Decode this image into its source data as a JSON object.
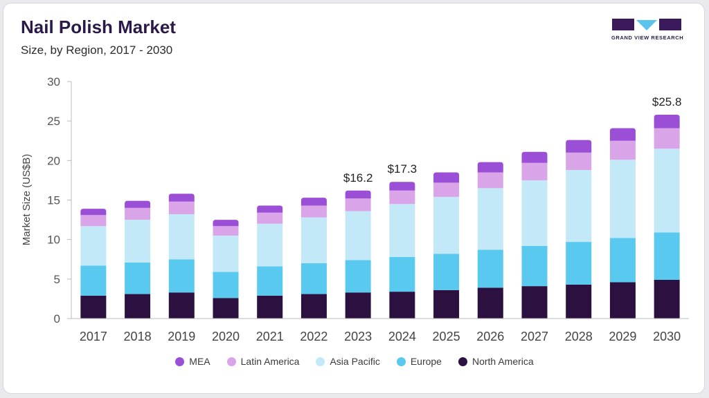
{
  "header": {
    "title": "Nail Polish Market",
    "subtitle": "Size, by Region, 2017 - 2030"
  },
  "logo": {
    "text": "GRAND VIEW RESEARCH",
    "colors": {
      "dark": "#3b1a5c",
      "accent": "#5bc4ec"
    }
  },
  "colors": {
    "MEA": "#9b4fd6",
    "Latin America": "#d9a5e8",
    "Asia Pacific": "#c3e9f8",
    "Europe": "#5ac9f0",
    "North America": "#2b1040"
  },
  "chart_data": {
    "type": "bar",
    "stacked": true,
    "title": "Nail Polish Market",
    "subtitle": "Size, by Region, 2017 - 2030",
    "xlabel": "",
    "ylabel": "Market Size (US$B)",
    "ylim": [
      0,
      30
    ],
    "yticks": [
      0,
      5,
      10,
      15,
      20,
      25,
      30
    ],
    "grid": false,
    "legend_position": "bottom",
    "categories": [
      "2017",
      "2018",
      "2019",
      "2020",
      "2021",
      "2022",
      "2023",
      "2024",
      "2025",
      "2026",
      "2027",
      "2028",
      "2029",
      "2030"
    ],
    "series": [
      {
        "name": "North America",
        "values": [
          2.9,
          3.1,
          3.3,
          2.6,
          2.9,
          3.1,
          3.3,
          3.4,
          3.6,
          3.9,
          4.1,
          4.3,
          4.6,
          4.9
        ]
      },
      {
        "name": "Europe",
        "values": [
          3.8,
          4.0,
          4.2,
          3.3,
          3.7,
          3.9,
          4.1,
          4.4,
          4.6,
          4.8,
          5.1,
          5.4,
          5.6,
          6.0
        ]
      },
      {
        "name": "Asia Pacific",
        "values": [
          5.0,
          5.4,
          5.7,
          4.6,
          5.4,
          5.8,
          6.2,
          6.7,
          7.2,
          7.8,
          8.3,
          9.1,
          9.9,
          10.6
        ]
      },
      {
        "name": "Latin America",
        "values": [
          1.4,
          1.5,
          1.6,
          1.2,
          1.4,
          1.5,
          1.6,
          1.7,
          1.8,
          2.0,
          2.2,
          2.2,
          2.4,
          2.6
        ]
      },
      {
        "name": "MEA",
        "values": [
          0.8,
          0.9,
          1.0,
          0.8,
          0.9,
          1.0,
          1.0,
          1.1,
          1.3,
          1.3,
          1.4,
          1.6,
          1.6,
          1.7
        ]
      }
    ],
    "annotations": [
      {
        "category": "2023",
        "label": "$16.2"
      },
      {
        "category": "2024",
        "label": "$17.3"
      },
      {
        "category": "2030",
        "label": "$25.8"
      }
    ],
    "legend_order": [
      "MEA",
      "Latin America",
      "Asia Pacific",
      "Europe",
      "North America"
    ]
  }
}
